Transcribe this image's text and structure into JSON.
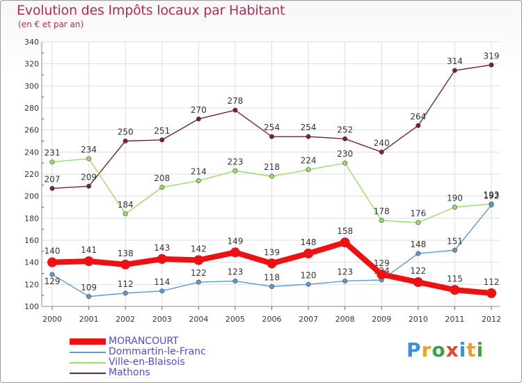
{
  "title": "Evolution des Impôts locaux par Habitant",
  "subtitle": "(en € et par an)",
  "brand": {
    "letters": [
      "P",
      "r",
      "o",
      "x",
      "i",
      "t",
      "i"
    ],
    "colors": [
      "#3e8ede",
      "#f29e1f",
      "#3ea33e",
      "#e0492f",
      "#3e8ede",
      "#f29e1f",
      "#3ea33e"
    ]
  },
  "chart_data": {
    "type": "line",
    "title": "Evolution des Impôts locaux par Habitant",
    "subtitle": "(en € et par an)",
    "categories": [
      "2000",
      "2001",
      "2002",
      "2003",
      "2004",
      "2005",
      "2006",
      "2007",
      "2008",
      "2009",
      "2010",
      "2011",
      "2012"
    ],
    "ylim": [
      100,
      340
    ],
    "yticks": [
      100,
      120,
      140,
      160,
      180,
      200,
      220,
      240,
      260,
      280,
      300,
      320,
      340
    ],
    "legend": "bottom-left",
    "series": [
      {
        "name": "MORANCOURT",
        "color": "#ee1111",
        "bold": true,
        "values": [
          140,
          141,
          138,
          143,
          142,
          149,
          139,
          148,
          158,
          129,
          122,
          115,
          112
        ]
      },
      {
        "name": "Dommartin-le-Franc",
        "color": "#5b9bd5",
        "values": [
          129,
          109,
          112,
          114,
          122,
          123,
          118,
          120,
          123,
          124,
          148,
          151,
          192
        ]
      },
      {
        "name": "Ville-en-Blaisois",
        "color": "#99dd66",
        "values": [
          231,
          234,
          184,
          208,
          214,
          223,
          218,
          224,
          230,
          178,
          176,
          190,
          193
        ]
      },
      {
        "name": "Mathons",
        "color": "#7a2030",
        "values": [
          207,
          209,
          250,
          251,
          270,
          278,
          254,
          254,
          252,
          240,
          264,
          314,
          319
        ]
      }
    ]
  }
}
